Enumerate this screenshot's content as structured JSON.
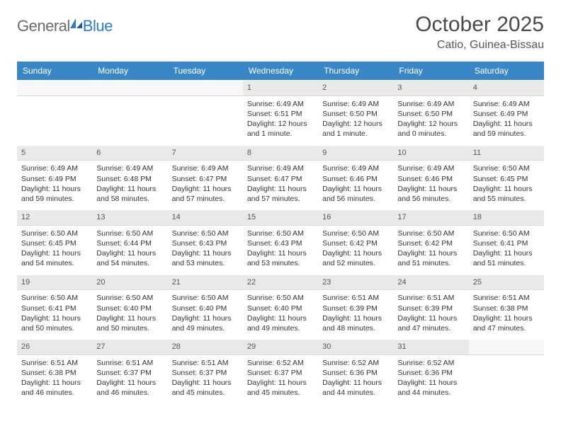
{
  "brand": {
    "general": "General",
    "blue": "Blue"
  },
  "header": {
    "month_title": "October 2025",
    "location": "Catio, Guinea-Bissau"
  },
  "colors": {
    "header_bar": "#3a87c8",
    "header_text": "#ffffff",
    "daynum_bg": "#e9e9e9",
    "body_text": "#333333",
    "logo_general": "#6b6b6b",
    "logo_blue": "#2b7ec2"
  },
  "day_labels": [
    "Sunday",
    "Monday",
    "Tuesday",
    "Wednesday",
    "Thursday",
    "Friday",
    "Saturday"
  ],
  "weeks": [
    [
      {
        "n": "",
        "sr": "",
        "ss": "",
        "dl": ""
      },
      {
        "n": "",
        "sr": "",
        "ss": "",
        "dl": ""
      },
      {
        "n": "",
        "sr": "",
        "ss": "",
        "dl": ""
      },
      {
        "n": "1",
        "sr": "Sunrise: 6:49 AM",
        "ss": "Sunset: 6:51 PM",
        "dl": "Daylight: 12 hours and 1 minute."
      },
      {
        "n": "2",
        "sr": "Sunrise: 6:49 AM",
        "ss": "Sunset: 6:50 PM",
        "dl": "Daylight: 12 hours and 1 minute."
      },
      {
        "n": "3",
        "sr": "Sunrise: 6:49 AM",
        "ss": "Sunset: 6:50 PM",
        "dl": "Daylight: 12 hours and 0 minutes."
      },
      {
        "n": "4",
        "sr": "Sunrise: 6:49 AM",
        "ss": "Sunset: 6:49 PM",
        "dl": "Daylight: 11 hours and 59 minutes."
      }
    ],
    [
      {
        "n": "5",
        "sr": "Sunrise: 6:49 AM",
        "ss": "Sunset: 6:49 PM",
        "dl": "Daylight: 11 hours and 59 minutes."
      },
      {
        "n": "6",
        "sr": "Sunrise: 6:49 AM",
        "ss": "Sunset: 6:48 PM",
        "dl": "Daylight: 11 hours and 58 minutes."
      },
      {
        "n": "7",
        "sr": "Sunrise: 6:49 AM",
        "ss": "Sunset: 6:47 PM",
        "dl": "Daylight: 11 hours and 57 minutes."
      },
      {
        "n": "8",
        "sr": "Sunrise: 6:49 AM",
        "ss": "Sunset: 6:47 PM",
        "dl": "Daylight: 11 hours and 57 minutes."
      },
      {
        "n": "9",
        "sr": "Sunrise: 6:49 AM",
        "ss": "Sunset: 6:46 PM",
        "dl": "Daylight: 11 hours and 56 minutes."
      },
      {
        "n": "10",
        "sr": "Sunrise: 6:49 AM",
        "ss": "Sunset: 6:46 PM",
        "dl": "Daylight: 11 hours and 56 minutes."
      },
      {
        "n": "11",
        "sr": "Sunrise: 6:50 AM",
        "ss": "Sunset: 6:45 PM",
        "dl": "Daylight: 11 hours and 55 minutes."
      }
    ],
    [
      {
        "n": "12",
        "sr": "Sunrise: 6:50 AM",
        "ss": "Sunset: 6:45 PM",
        "dl": "Daylight: 11 hours and 54 minutes."
      },
      {
        "n": "13",
        "sr": "Sunrise: 6:50 AM",
        "ss": "Sunset: 6:44 PM",
        "dl": "Daylight: 11 hours and 54 minutes."
      },
      {
        "n": "14",
        "sr": "Sunrise: 6:50 AM",
        "ss": "Sunset: 6:43 PM",
        "dl": "Daylight: 11 hours and 53 minutes."
      },
      {
        "n": "15",
        "sr": "Sunrise: 6:50 AM",
        "ss": "Sunset: 6:43 PM",
        "dl": "Daylight: 11 hours and 53 minutes."
      },
      {
        "n": "16",
        "sr": "Sunrise: 6:50 AM",
        "ss": "Sunset: 6:42 PM",
        "dl": "Daylight: 11 hours and 52 minutes."
      },
      {
        "n": "17",
        "sr": "Sunrise: 6:50 AM",
        "ss": "Sunset: 6:42 PM",
        "dl": "Daylight: 11 hours and 51 minutes."
      },
      {
        "n": "18",
        "sr": "Sunrise: 6:50 AM",
        "ss": "Sunset: 6:41 PM",
        "dl": "Daylight: 11 hours and 51 minutes."
      }
    ],
    [
      {
        "n": "19",
        "sr": "Sunrise: 6:50 AM",
        "ss": "Sunset: 6:41 PM",
        "dl": "Daylight: 11 hours and 50 minutes."
      },
      {
        "n": "20",
        "sr": "Sunrise: 6:50 AM",
        "ss": "Sunset: 6:40 PM",
        "dl": "Daylight: 11 hours and 50 minutes."
      },
      {
        "n": "21",
        "sr": "Sunrise: 6:50 AM",
        "ss": "Sunset: 6:40 PM",
        "dl": "Daylight: 11 hours and 49 minutes."
      },
      {
        "n": "22",
        "sr": "Sunrise: 6:50 AM",
        "ss": "Sunset: 6:40 PM",
        "dl": "Daylight: 11 hours and 49 minutes."
      },
      {
        "n": "23",
        "sr": "Sunrise: 6:51 AM",
        "ss": "Sunset: 6:39 PM",
        "dl": "Daylight: 11 hours and 48 minutes."
      },
      {
        "n": "24",
        "sr": "Sunrise: 6:51 AM",
        "ss": "Sunset: 6:39 PM",
        "dl": "Daylight: 11 hours and 47 minutes."
      },
      {
        "n": "25",
        "sr": "Sunrise: 6:51 AM",
        "ss": "Sunset: 6:38 PM",
        "dl": "Daylight: 11 hours and 47 minutes."
      }
    ],
    [
      {
        "n": "26",
        "sr": "Sunrise: 6:51 AM",
        "ss": "Sunset: 6:38 PM",
        "dl": "Daylight: 11 hours and 46 minutes."
      },
      {
        "n": "27",
        "sr": "Sunrise: 6:51 AM",
        "ss": "Sunset: 6:37 PM",
        "dl": "Daylight: 11 hours and 46 minutes."
      },
      {
        "n": "28",
        "sr": "Sunrise: 6:51 AM",
        "ss": "Sunset: 6:37 PM",
        "dl": "Daylight: 11 hours and 45 minutes."
      },
      {
        "n": "29",
        "sr": "Sunrise: 6:52 AM",
        "ss": "Sunset: 6:37 PM",
        "dl": "Daylight: 11 hours and 45 minutes."
      },
      {
        "n": "30",
        "sr": "Sunrise: 6:52 AM",
        "ss": "Sunset: 6:36 PM",
        "dl": "Daylight: 11 hours and 44 minutes."
      },
      {
        "n": "31",
        "sr": "Sunrise: 6:52 AM",
        "ss": "Sunset: 6:36 PM",
        "dl": "Daylight: 11 hours and 44 minutes."
      },
      {
        "n": "",
        "sr": "",
        "ss": "",
        "dl": ""
      }
    ]
  ]
}
